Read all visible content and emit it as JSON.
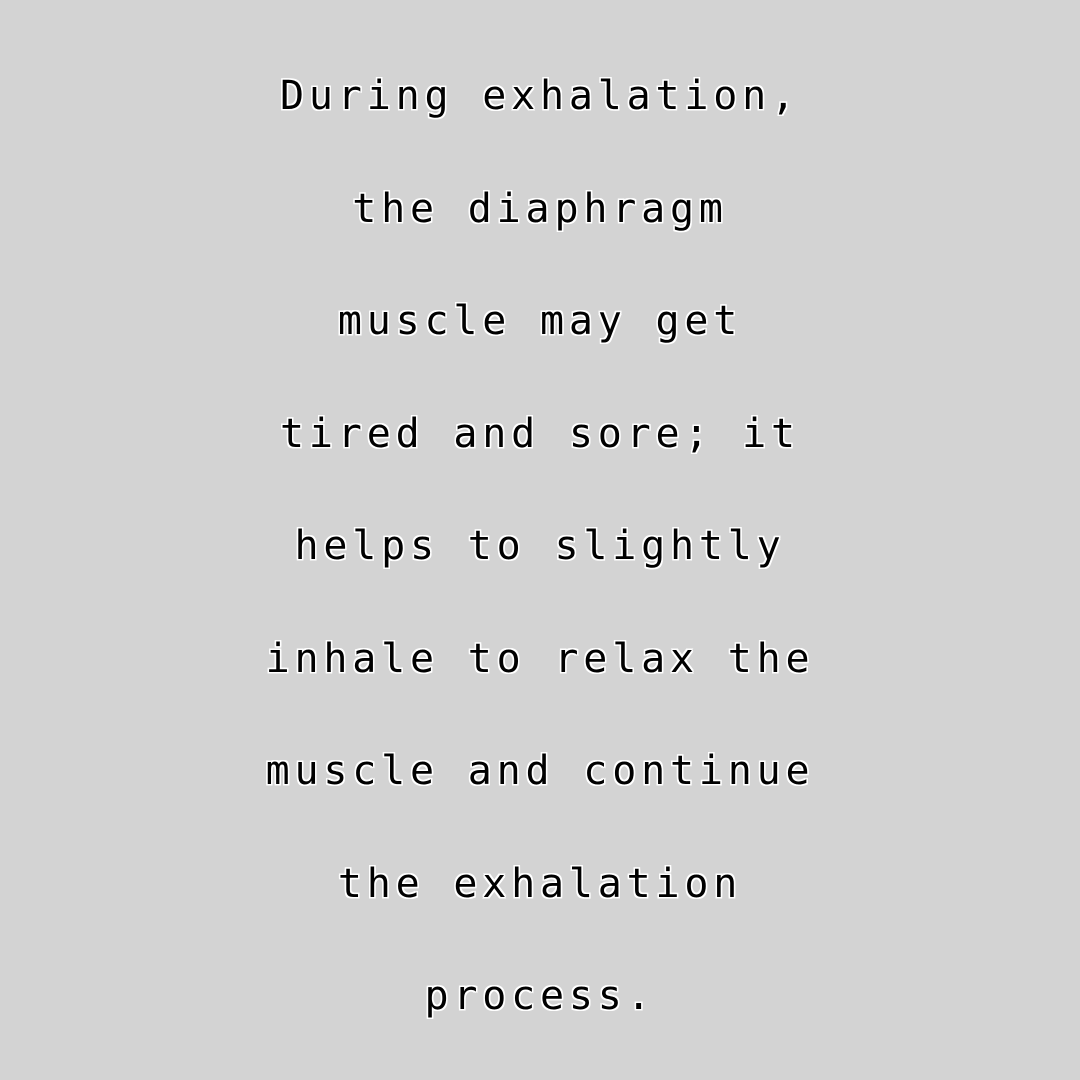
{
  "caption": {
    "lines": [
      "During exhalation,",
      "the diaphragm",
      "muscle may get",
      "tired and sore; it",
      "helps to slightly",
      "inhale to relax the",
      "muscle and continue",
      "the exhalation",
      "process."
    ]
  },
  "colors": {
    "background": "#d3d3d3",
    "text": "#000000",
    "text_outline": "#ffffff"
  }
}
